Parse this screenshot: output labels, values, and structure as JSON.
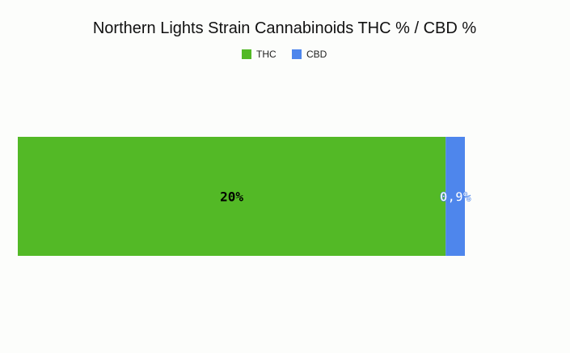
{
  "chart_data": {
    "type": "bar",
    "orientation": "horizontal",
    "stacked": true,
    "title": "Northern Lights Strain Cannabinoids THC % / CBD %",
    "xlabel": "",
    "ylabel": "",
    "grid": false,
    "legend_position": "top-center",
    "categories": [
      ""
    ],
    "series": [
      {
        "name": "THC",
        "values": [
          20
        ],
        "label": "20%",
        "color": "#53b926",
        "label_color": "#000000"
      },
      {
        "name": "CBD",
        "values": [
          0.9
        ],
        "label": "0,9%",
        "color": "#4e86ec",
        "label_color": "#ffffff"
      }
    ]
  }
}
